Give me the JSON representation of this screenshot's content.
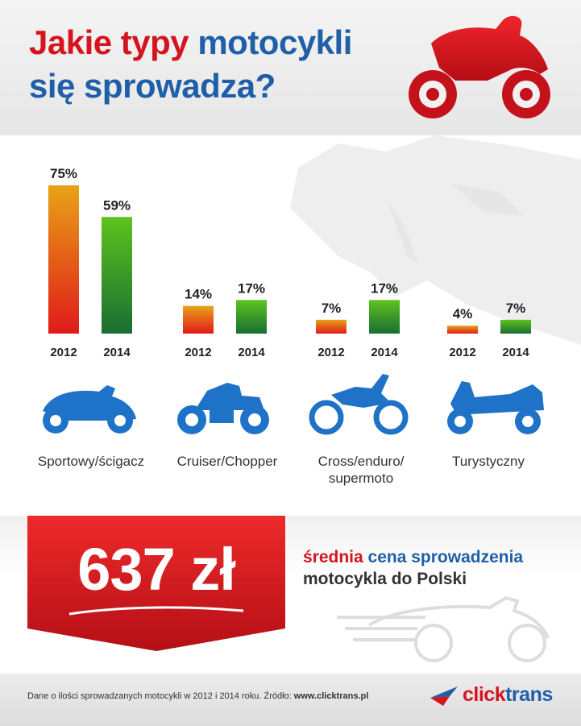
{
  "header": {
    "title_red": "Jakie typy",
    "title_blue_1": "motocykli",
    "title_blue_2": "się sprowadza?"
  },
  "chart_data": {
    "type": "bar",
    "series": [
      {
        "values": [
          75,
          14,
          7,
          4
        ]
      },
      {
        "values": [
          59,
          17,
          17,
          7
        ]
      }
    ],
    "categories": [
      "Sportowy/ścigacz",
      "Cruiser/Chopper",
      "Cross/enduro/supermoto",
      "Turystyczny"
    ],
    "years": [
      "2012",
      "2014"
    ],
    "data_labels": [
      [
        "75%",
        "59%"
      ],
      [
        "14%",
        "17%"
      ],
      [
        "7%",
        "17%"
      ],
      [
        "4%",
        "7%"
      ]
    ],
    "value_unit": "%",
    "ylim": [
      0,
      75
    ],
    "grid": false
  },
  "categories_display": [
    {
      "line1": "Sportowy/ścigacz",
      "line2": "",
      "icon": "sport-motorcycle-icon"
    },
    {
      "line1": "Cruiser/Chopper",
      "line2": "",
      "icon": "cruiser-motorcycle-icon"
    },
    {
      "line1": "Cross/enduro/",
      "line2": "supermoto",
      "icon": "cross-motorcycle-icon"
    },
    {
      "line1": "Turystyczny",
      "line2": "",
      "icon": "touring-motorcycle-icon"
    }
  ],
  "stat": {
    "value": "637 zł",
    "line1_red": "średnia",
    "line1_blue": "cena sprowadzenia",
    "line2": "motocykla do Polski"
  },
  "footer": {
    "text": "Dane o ilości sprowadzanych motocykli w 2012 i 2014 roku. Źródło: ",
    "source": "www.clicktrans.pl",
    "logo_part1": "click",
    "logo_part2": "trans"
  },
  "colors": {
    "red": "#d5141e",
    "blue": "#1f5fa8",
    "icon_blue": "#1e72c8",
    "bar_2012_top": "#e8a317",
    "bar_2012_bottom": "#e01a1a",
    "bar_2014_top": "#5ec21d",
    "bar_2014_bottom": "#1a6e32"
  }
}
